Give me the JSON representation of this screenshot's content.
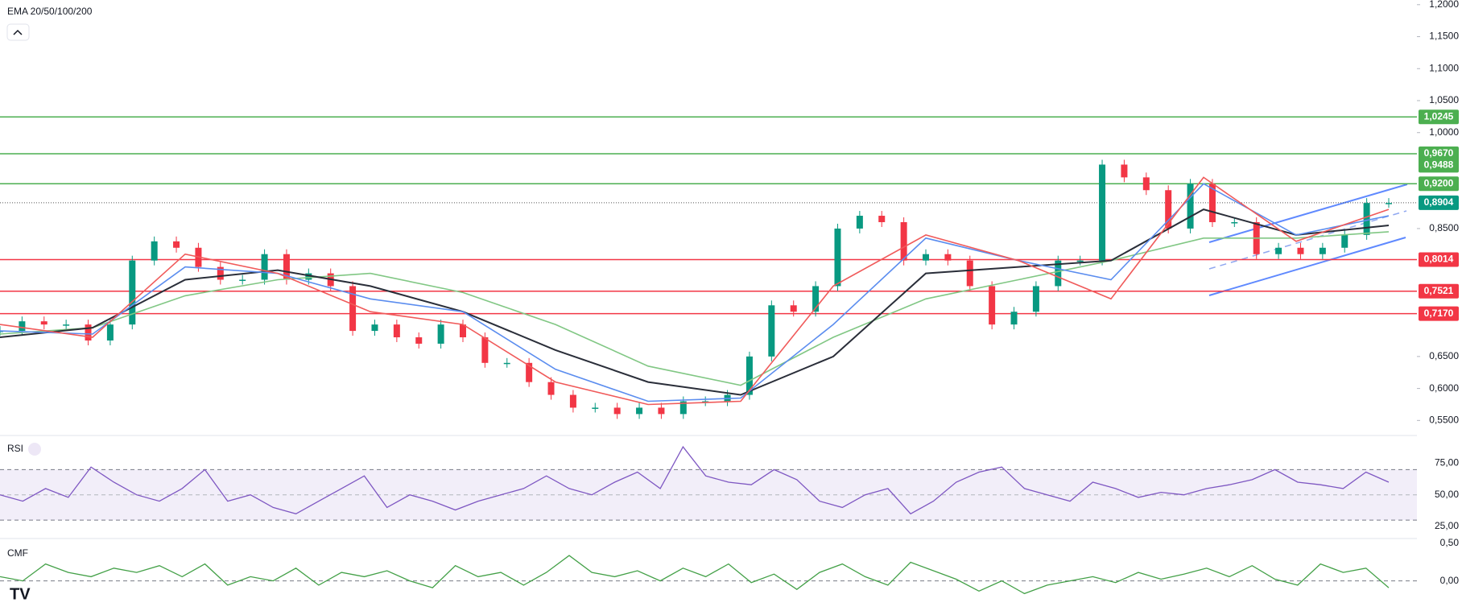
{
  "chart_data": {
    "type": "candlestick",
    "title": "EMA 20/50/100/200",
    "ylim": [
      0.5265,
      1.2073
    ],
    "yticks": [
      {
        "value": 1.2,
        "label": "1,2000"
      },
      {
        "value": 1.15,
        "label": "1,1500"
      },
      {
        "value": 1.1,
        "label": "1,1000"
      },
      {
        "value": 1.05,
        "label": "1,0500"
      },
      {
        "value": 1.0,
        "label": "1,0000"
      },
      {
        "value": 0.85,
        "label": "0,8500"
      },
      {
        "value": 0.65,
        "label": "0,6500"
      },
      {
        "value": 0.6,
        "label": "0,6000"
      },
      {
        "value": 0.55,
        "label": "0,5500"
      }
    ],
    "values": [
      0.69,
      0.705,
      0.7,
      0.7,
      0.675,
      0.7,
      0.8,
      0.83,
      0.82,
      0.79,
      0.77,
      0.77,
      0.81,
      0.77,
      0.78,
      0.76,
      0.69,
      0.7,
      0.68,
      0.67,
      0.7,
      0.68,
      0.64,
      0.64,
      0.61,
      0.59,
      0.57,
      0.57,
      0.56,
      0.57,
      0.56,
      0.58,
      0.58,
      0.59,
      0.65,
      0.73,
      0.72,
      0.76,
      0.85,
      0.87,
      0.86,
      0.8,
      0.81,
      0.8,
      0.76,
      0.7,
      0.72,
      0.76,
      0.8,
      0.8,
      0.95,
      0.93,
      0.91,
      0.85,
      0.92,
      0.86,
      0.86,
      0.81,
      0.82,
      0.81,
      0.82,
      0.84,
      0.89,
      0.89
    ],
    "up_color": "#089981",
    "down_color": "#f23645",
    "series": [
      {
        "name": "EMA 200",
        "color": "#81c784",
        "values": [
          0.685,
          0.695,
          0.745,
          0.77,
          0.78,
          0.75,
          0.7,
          0.635,
          0.605,
          0.68,
          0.74,
          0.77,
          0.8,
          0.835,
          0.835,
          0.845
        ]
      },
      {
        "name": "EMA 100",
        "color": "#2a2e39",
        "values": [
          0.68,
          0.695,
          0.77,
          0.785,
          0.76,
          0.72,
          0.66,
          0.61,
          0.59,
          0.65,
          0.78,
          0.79,
          0.8,
          0.88,
          0.84,
          0.855
        ]
      },
      {
        "name": "EMA 50",
        "color": "#5b8def",
        "values": [
          0.69,
          0.685,
          0.79,
          0.78,
          0.74,
          0.72,
          0.63,
          0.58,
          0.585,
          0.7,
          0.835,
          0.8,
          0.77,
          0.92,
          0.84,
          0.87
        ]
      },
      {
        "name": "EMA 20",
        "color": "#f05a5a",
        "values": [
          0.7,
          0.68,
          0.81,
          0.78,
          0.72,
          0.7,
          0.61,
          0.575,
          0.58,
          0.76,
          0.84,
          0.8,
          0.74,
          0.93,
          0.83,
          0.88
        ]
      }
    ],
    "levels": [
      {
        "value": 1.0245,
        "label": "1,0245",
        "color": "#4caf50",
        "line": true
      },
      {
        "value": 0.967,
        "label": "0,9670",
        "color": "#4caf50",
        "line": true
      },
      {
        "value": 0.9488,
        "label": "0,9488",
        "color": "#4caf50",
        "line": false
      },
      {
        "value": 0.92,
        "label": "0,9200",
        "color": "#4caf50",
        "line": true
      },
      {
        "value": 0.8904,
        "label": "0,8904",
        "color": "#089981",
        "line": false
      },
      {
        "value": 0.8014,
        "label": "0,8014",
        "color": "#f23645",
        "line": true
      },
      {
        "value": 0.7521,
        "label": "0,7521",
        "color": "#f23645",
        "line": true
      },
      {
        "value": 0.717,
        "label": "0,7170",
        "color": "#f23645",
        "line": true
      }
    ],
    "rsi": {
      "title": "RSI",
      "color": "#7e57c2",
      "ylim": [
        15.4,
        97
      ],
      "band": [
        30,
        70
      ],
      "yticks": [
        {
          "value": 75,
          "label": "75,00"
        },
        {
          "value": 50,
          "label": "50,00"
        },
        {
          "value": 25,
          "label": "25,00"
        }
      ],
      "values": [
        50,
        45,
        55,
        48,
        72,
        60,
        50,
        45,
        55,
        70,
        45,
        50,
        40,
        35,
        45,
        55,
        65,
        40,
        50,
        45,
        38,
        45,
        50,
        55,
        65,
        55,
        50,
        60,
        68,
        55,
        88,
        65,
        60,
        58,
        70,
        62,
        45,
        40,
        50,
        55,
        35,
        45,
        60,
        68,
        72,
        55,
        50,
        45,
        60,
        55,
        48,
        52,
        50,
        55,
        58,
        62,
        70,
        60,
        58,
        55,
        68,
        60
      ]
    },
    "cmf": {
      "title": "CMF",
      "color": "#43a047",
      "ylim": [
        -0.355,
        0.5
      ],
      "yticks": [
        {
          "value": 0.5,
          "label": "0,50"
        },
        {
          "value": 0,
          "label": "0,00"
        }
      ],
      "values": [
        0.05,
        0.0,
        0.2,
        0.1,
        0.05,
        0.15,
        0.1,
        0.18,
        0.05,
        0.2,
        -0.05,
        0.05,
        0.0,
        0.15,
        -0.05,
        0.1,
        0.05,
        0.12,
        0.0,
        -0.08,
        0.18,
        0.05,
        0.1,
        -0.05,
        0.1,
        0.3,
        0.1,
        0.05,
        0.12,
        0.0,
        0.15,
        0.05,
        0.2,
        -0.02,
        0.08,
        -0.1,
        0.1,
        0.2,
        0.05,
        -0.05,
        0.22,
        0.12,
        0.02,
        -0.12,
        0.0,
        -0.15,
        -0.05,
        0.0,
        0.05,
        -0.02,
        0.1,
        0.02,
        0.08,
        0.15,
        0.05,
        0.18,
        0.02,
        -0.05,
        0.2,
        0.1,
        0.15,
        -0.08
      ]
    }
  }
}
